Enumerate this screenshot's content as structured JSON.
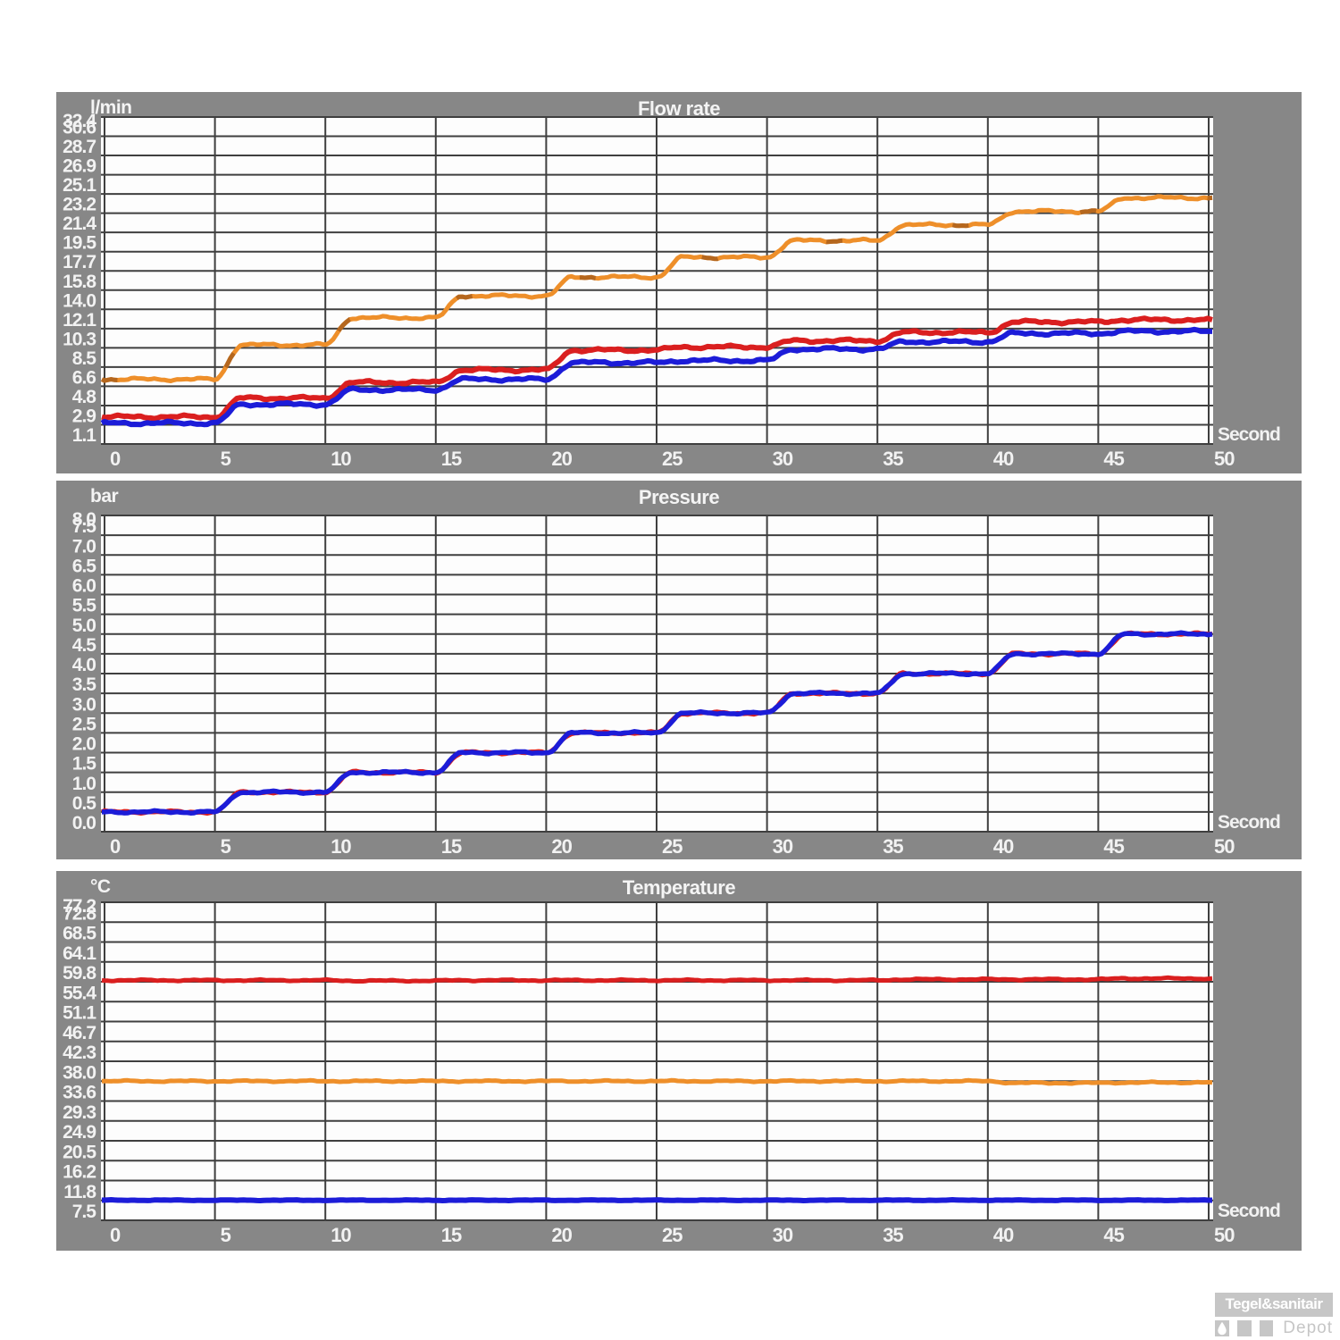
{
  "colors": {
    "panel_bg": "#878787",
    "plot_bg": "#fdfdfd",
    "grid": "#3f3f3f",
    "axis_text": "#f2f2f2",
    "orange": "#ee8f2a",
    "red": "#da1f1f",
    "blue": "#1c1cd8",
    "watermark_gray": "#c6c6c6"
  },
  "chart_data": [
    {
      "type": "line",
      "title": "Flow rate",
      "unit": "l/min",
      "x_label": "Second",
      "x_ticks": [
        "0",
        "5",
        "10",
        "15",
        "20",
        "25",
        "30",
        "35",
        "40",
        "45",
        "50"
      ],
      "x_min": 0,
      "x_max": 50,
      "segment_seconds": 5,
      "y_tick_labels": [
        "1.1",
        "2.9",
        "4.8",
        "6.6",
        "8.5",
        "10.3",
        "12.1",
        "14.0",
        "15.8",
        "17.7",
        "19.5",
        "21.4",
        "23.2",
        "25.1",
        "26.9",
        "28.7",
        "30.6",
        "32.4"
      ],
      "y_min": 1.1,
      "y_step": 1.84375,
      "grid": true,
      "series": [
        {
          "name": "orange-line",
          "color": "#ee8f2a",
          "plateaus": [
            7.3,
            10.6,
            13.2,
            15.3,
            17.1,
            19.0,
            20.6,
            22.1,
            23.4,
            24.7
          ]
        },
        {
          "name": "red-line",
          "color": "#da1f1f",
          "plateaus": [
            3.7,
            5.5,
            7.0,
            8.2,
            10.1,
            10.4,
            11.0,
            11.8,
            12.8,
            13.0
          ]
        },
        {
          "name": "blue-line",
          "color": "#1c1cd8",
          "plateaus": [
            3.1,
            4.9,
            6.3,
            7.3,
            8.9,
            9.1,
            10.2,
            10.9,
            11.7,
            11.9
          ]
        }
      ]
    },
    {
      "type": "line",
      "title": "Pressure",
      "unit": "bar",
      "x_label": "Second",
      "x_ticks": [
        "0",
        "5",
        "10",
        "15",
        "20",
        "25",
        "30",
        "35",
        "40",
        "45",
        "50"
      ],
      "x_min": 0,
      "x_max": 50,
      "segment_seconds": 5,
      "y_tick_labels": [
        "0.0",
        "0.5",
        "1.0",
        "1.5",
        "2.0",
        "2.5",
        "3.0",
        "3.5",
        "4.0",
        "4.5",
        "5.0",
        "5.5",
        "6.0",
        "6.5",
        "7.0",
        "7.5",
        "8.0"
      ],
      "y_min": 0.0,
      "y_step": 0.5,
      "grid": true,
      "series": [
        {
          "name": "red-line",
          "color": "#da1f1f",
          "plateaus": [
            0.5,
            1.0,
            1.5,
            2.0,
            2.5,
            3.0,
            3.5,
            4.0,
            4.5,
            5.0
          ]
        },
        {
          "name": "blue-line",
          "color": "#1c1cd8",
          "plateaus": [
            0.5,
            1.0,
            1.5,
            2.0,
            2.5,
            3.0,
            3.5,
            4.0,
            4.5,
            5.0
          ]
        }
      ]
    },
    {
      "type": "line",
      "title": "Temperature",
      "unit": "°C",
      "x_label": "Second",
      "x_ticks": [
        "0",
        "5",
        "10",
        "15",
        "20",
        "25",
        "30",
        "35",
        "40",
        "45",
        "50"
      ],
      "x_min": 0,
      "x_max": 50,
      "segment_seconds": 5,
      "y_tick_labels": [
        "7.5",
        "11.8",
        "16.2",
        "20.5",
        "24.9",
        "29.3",
        "33.6",
        "38.0",
        "42.3",
        "46.7",
        "51.1",
        "55.4",
        "59.8",
        "64.1",
        "68.5",
        "72.8",
        "77.2"
      ],
      "y_min": 7.5,
      "y_step": 4.35625,
      "grid": true,
      "series": [
        {
          "name": "red-line",
          "color": "#da1f1f",
          "plateaus": [
            60.1,
            60.1,
            60.0,
            60.1,
            60.1,
            60.1,
            60.1,
            60.3,
            60.3,
            60.5
          ]
        },
        {
          "name": "orange-line",
          "color": "#ee8f2a",
          "plateaus": [
            38.0,
            38.0,
            38.0,
            38.0,
            38.0,
            38.0,
            38.0,
            38.0,
            37.6,
            37.7
          ]
        },
        {
          "name": "blue-line",
          "color": "#1c1cd8",
          "plateaus": [
            11.9,
            11.9,
            11.9,
            11.9,
            11.9,
            11.9,
            11.9,
            11.9,
            11.9,
            11.9
          ]
        }
      ]
    }
  ],
  "watermark": {
    "brand": "Tegel&sanitair",
    "sub": "Depot"
  }
}
